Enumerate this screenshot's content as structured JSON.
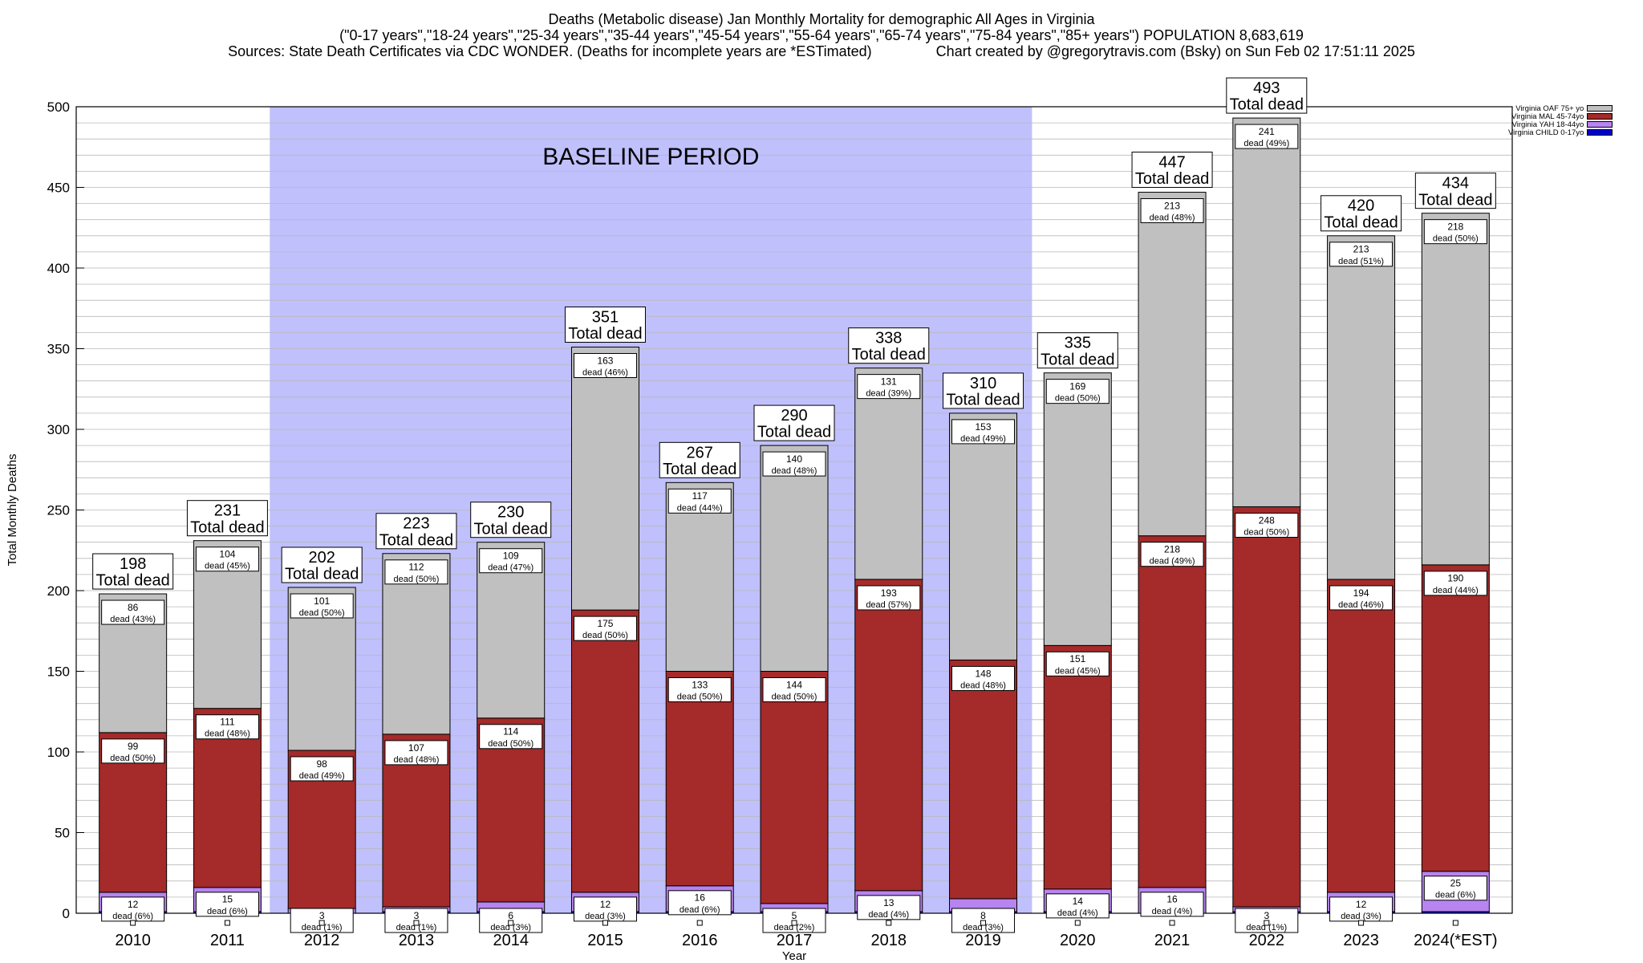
{
  "header": {
    "line1": "Deaths (Metabolic disease) Jan Monthly Mortality for demographic All Ages in Virginia",
    "line2": "(\"0-17 years\",\"18-24 years\",\"25-34 years\",\"35-44 years\",\"45-54 years\",\"55-64 years\",\"65-74 years\",\"75-84 years\",\"85+ years\") POPULATION 8,683,619",
    "line3": "Sources: State Death Certificates via CDC WONDER. (Deaths for incomplete years are *ESTimated)                Chart created by @gregorytravis.com (Bsky) on Sun Feb 02 17:51:11 2025"
  },
  "chart_data": {
    "type": "bar",
    "stacked": true,
    "title": "Deaths (Metabolic disease) Jan Monthly Mortality for demographic All Ages in Virginia",
    "xlabel": "Year",
    "ylabel": "Total Monthly Deaths",
    "ylim": [
      0,
      500
    ],
    "yticks": [
      0,
      50,
      100,
      150,
      200,
      250,
      300,
      350,
      400,
      450,
      500
    ],
    "grid": true,
    "legend_position": "top-right",
    "baseline_label": "BASELINE PERIOD",
    "baseline_range": [
      "2012",
      "2019"
    ],
    "total_label": "Total dead",
    "dead_word": "dead",
    "categories": [
      "2010",
      "2011",
      "2012",
      "2013",
      "2014",
      "2015",
      "2016",
      "2017",
      "2018",
      "2019",
      "2020",
      "2021",
      "2022",
      "2023",
      "2024(*EST)"
    ],
    "totals": [
      198,
      231,
      202,
      223,
      230,
      351,
      267,
      290,
      338,
      310,
      335,
      447,
      493,
      420,
      434
    ],
    "series": [
      {
        "name": "Virginia CHILD 0-17yo",
        "color": "#0000cc",
        "values": [
          1,
          1,
          0,
          1,
          1,
          1,
          1,
          1,
          1,
          1,
          1,
          0,
          1,
          1,
          1
        ]
      },
      {
        "name": "Virginia YAH 18-44yo",
        "color": "#b784f0",
        "values": [
          12,
          15,
          3,
          3,
          6,
          12,
          16,
          5,
          13,
          8,
          14,
          16,
          3,
          12,
          25
        ],
        "pct": [
          "6%",
          "6%",
          "1%",
          "1%",
          "3%",
          "3%",
          "6%",
          "2%",
          "4%",
          "3%",
          "4%",
          "4%",
          "1%",
          "3%",
          "6%"
        ]
      },
      {
        "name": "Virginia MAL 45-74yo",
        "color": "#a52a2a",
        "values": [
          99,
          111,
          98,
          107,
          114,
          175,
          133,
          144,
          193,
          148,
          151,
          218,
          248,
          194,
          190
        ],
        "pct": [
          "50%",
          "48%",
          "49%",
          "48%",
          "50%",
          "50%",
          "50%",
          "50%",
          "57%",
          "48%",
          "45%",
          "49%",
          "50%",
          "46%",
          "44%"
        ]
      },
      {
        "name": "Virginia OAF 75+ yo",
        "color": "#c0c0c0",
        "values": [
          86,
          104,
          101,
          112,
          109,
          163,
          117,
          140,
          131,
          153,
          169,
          213,
          241,
          213,
          218
        ],
        "pct": [
          "43%",
          "45%",
          "50%",
          "50%",
          "47%",
          "46%",
          "44%",
          "48%",
          "39%",
          "49%",
          "50%",
          "48%",
          "49%",
          "51%",
          "50%"
        ]
      }
    ]
  },
  "colors": {
    "baseline": "#c0c0fc",
    "child": "#0000cc",
    "yah": "#b784f0",
    "mal": "#a52a2a",
    "oaf": "#c0c0c0"
  }
}
